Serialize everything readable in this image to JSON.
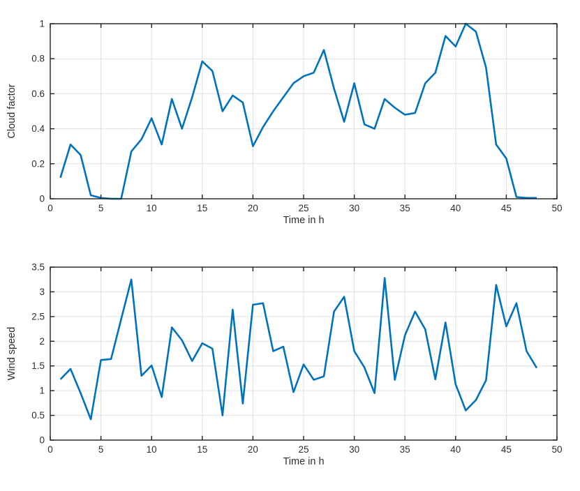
{
  "figure": {
    "background": "#ffffff"
  },
  "style": {
    "line_color": "#0072BD",
    "axis_color": "#1f1f1f",
    "grid_color": "#e0e0e0",
    "text_color": "#2e2e2e"
  },
  "chart_data": [
    {
      "type": "line",
      "title": "",
      "xlabel": "Time in h",
      "ylabel": "Cloud factor",
      "xlim": [
        0,
        50
      ],
      "ylim": [
        0,
        1
      ],
      "xticks": [
        0,
        5,
        10,
        15,
        20,
        25,
        30,
        35,
        40,
        45,
        50
      ],
      "xtick_labels": [
        "0",
        "5",
        "10",
        "15",
        "20",
        "25",
        "30",
        "35",
        "40",
        "45",
        "50"
      ],
      "yticks": [
        0,
        0.2,
        0.4,
        0.6,
        0.8,
        1
      ],
      "ytick_labels": [
        "0",
        "0.2",
        "0.4",
        "0.6",
        "0.8",
        "1"
      ],
      "grid": true,
      "legend": null,
      "x": [
        1,
        2,
        3,
        4,
        5,
        6,
        7,
        8,
        9,
        10,
        11,
        12,
        13,
        14,
        15,
        16,
        17,
        18,
        19,
        20,
        21,
        22,
        23,
        24,
        25,
        26,
        27,
        28,
        29,
        30,
        31,
        32,
        33,
        34,
        35,
        36,
        37,
        38,
        39,
        40,
        41,
        42,
        43,
        44,
        45,
        46,
        47,
        48
      ],
      "y": [
        0.12,
        0.31,
        0.25,
        0.02,
        0.005,
        0.0,
        0.0,
        0.27,
        0.34,
        0.46,
        0.31,
        0.57,
        0.4,
        0.58,
        0.785,
        0.73,
        0.5,
        0.59,
        0.55,
        0.3,
        0.41,
        0.5,
        0.58,
        0.66,
        0.7,
        0.72,
        0.85,
        0.63,
        0.44,
        0.66,
        0.425,
        0.4,
        0.57,
        0.52,
        0.48,
        0.49,
        0.66,
        0.72,
        0.93,
        0.87,
        1.0,
        0.955,
        0.75,
        0.31,
        0.23,
        0.01,
        0.005,
        0.005
      ]
    },
    {
      "type": "line",
      "title": "",
      "xlabel": "Time in h",
      "ylabel": "Wind speed",
      "xlim": [
        0,
        50
      ],
      "ylim": [
        0,
        3.5
      ],
      "xticks": [
        0,
        5,
        10,
        15,
        20,
        25,
        30,
        35,
        40,
        45,
        50
      ],
      "xtick_labels": [
        "0",
        "5",
        "10",
        "15",
        "20",
        "25",
        "30",
        "35",
        "40",
        "45",
        "50"
      ],
      "yticks": [
        0,
        0.5,
        1,
        1.5,
        2,
        2.5,
        3,
        3.5
      ],
      "ytick_labels": [
        "0",
        "0.5",
        "1",
        "1.5",
        "2",
        "2.5",
        "3",
        "3.5"
      ],
      "grid": true,
      "legend": null,
      "x": [
        1,
        2,
        3,
        4,
        5,
        6,
        7,
        8,
        9,
        10,
        11,
        12,
        13,
        14,
        15,
        16,
        17,
        18,
        19,
        20,
        21,
        22,
        23,
        24,
        25,
        26,
        27,
        28,
        29,
        30,
        31,
        32,
        33,
        34,
        35,
        36,
        37,
        38,
        39,
        40,
        41,
        42,
        43,
        44,
        45,
        46,
        47,
        48
      ],
      "y": [
        1.23,
        1.44,
        0.95,
        0.42,
        1.62,
        1.64,
        2.45,
        3.25,
        1.3,
        1.51,
        0.87,
        2.28,
        2.02,
        1.6,
        1.96,
        1.85,
        0.5,
        2.64,
        0.74,
        2.74,
        2.77,
        1.8,
        1.89,
        0.97,
        1.53,
        1.22,
        1.29,
        2.6,
        2.9,
        1.8,
        1.47,
        0.95,
        3.28,
        1.22,
        2.12,
        2.6,
        2.24,
        1.23,
        2.38,
        1.13,
        0.6,
        0.81,
        1.21,
        3.14,
        2.3,
        2.77,
        1.8,
        1.46
      ]
    }
  ]
}
